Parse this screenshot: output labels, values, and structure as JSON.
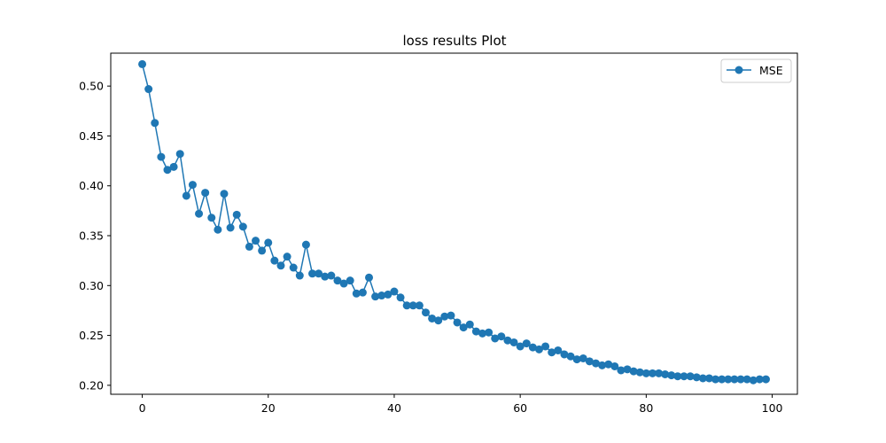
{
  "chart_data": {
    "type": "line",
    "title": "loss results Plot",
    "xlabel": "",
    "ylabel": "",
    "xlim": [
      -5,
      104
    ],
    "ylim": [
      0.191,
      0.533
    ],
    "xticks": [
      0,
      20,
      40,
      60,
      80,
      100
    ],
    "yticks": [
      0.2,
      0.25,
      0.3,
      0.35,
      0.4,
      0.45,
      0.5
    ],
    "ytick_labels": [
      "0.20",
      "0.25",
      "0.30",
      "0.35",
      "0.40",
      "0.45",
      "0.50"
    ],
    "grid": false,
    "legend_position": "top-right",
    "series": [
      {
        "name": "MSE",
        "color": "#1f77b4",
        "marker": "circle",
        "x": [
          0,
          1,
          2,
          3,
          4,
          5,
          6,
          7,
          8,
          9,
          10,
          11,
          12,
          13,
          14,
          15,
          16,
          17,
          18,
          19,
          20,
          21,
          22,
          23,
          24,
          25,
          26,
          27,
          28,
          29,
          30,
          31,
          32,
          33,
          34,
          35,
          36,
          37,
          38,
          39,
          40,
          41,
          42,
          43,
          44,
          45,
          46,
          47,
          48,
          49,
          50,
          51,
          52,
          53,
          54,
          55,
          56,
          57,
          58,
          59,
          60,
          61,
          62,
          63,
          64,
          65,
          66,
          67,
          68,
          69,
          70,
          71,
          72,
          73,
          74,
          75,
          76,
          77,
          78,
          79,
          80,
          81,
          82,
          83,
          84,
          85,
          86,
          87,
          88,
          89,
          90,
          91,
          92,
          93,
          94,
          95,
          96,
          97,
          98,
          99
        ],
        "values": [
          0.522,
          0.497,
          0.463,
          0.429,
          0.416,
          0.419,
          0.432,
          0.39,
          0.401,
          0.372,
          0.393,
          0.368,
          0.356,
          0.392,
          0.358,
          0.371,
          0.359,
          0.339,
          0.345,
          0.335,
          0.343,
          0.325,
          0.32,
          0.329,
          0.318,
          0.31,
          0.341,
          0.312,
          0.312,
          0.309,
          0.31,
          0.305,
          0.302,
          0.305,
          0.292,
          0.293,
          0.308,
          0.289,
          0.29,
          0.291,
          0.294,
          0.288,
          0.28,
          0.28,
          0.28,
          0.273,
          0.267,
          0.265,
          0.269,
          0.27,
          0.263,
          0.258,
          0.261,
          0.254,
          0.252,
          0.253,
          0.247,
          0.249,
          0.245,
          0.243,
          0.239,
          0.242,
          0.238,
          0.236,
          0.239,
          0.233,
          0.235,
          0.231,
          0.229,
          0.226,
          0.227,
          0.224,
          0.222,
          0.22,
          0.221,
          0.219,
          0.215,
          0.216,
          0.214,
          0.213,
          0.212,
          0.212,
          0.212,
          0.211,
          0.21,
          0.209,
          0.209,
          0.209,
          0.208,
          0.207,
          0.207,
          0.206,
          0.206,
          0.206,
          0.206,
          0.206,
          0.206,
          0.205,
          0.206,
          0.206
        ]
      }
    ]
  }
}
